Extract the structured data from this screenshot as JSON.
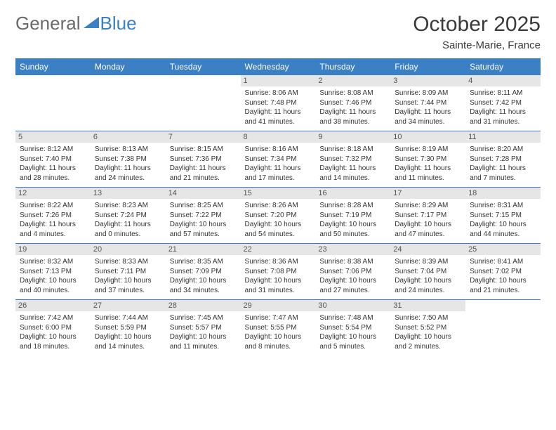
{
  "brand": {
    "gray": "General",
    "blue": "Blue"
  },
  "title": "October 2025",
  "subtitle": "Sainte-Marie, France",
  "colors": {
    "header_bg": "#3b7fc4",
    "header_text": "#ffffff",
    "daynum_bg": "#e6e6e6",
    "border": "#3b7fc4",
    "text": "#333333"
  },
  "dayNames": [
    "Sunday",
    "Monday",
    "Tuesday",
    "Wednesday",
    "Thursday",
    "Friday",
    "Saturday"
  ],
  "weeks": [
    [
      {
        "n": "",
        "lines": []
      },
      {
        "n": "",
        "lines": []
      },
      {
        "n": "",
        "lines": []
      },
      {
        "n": "1",
        "lines": [
          "Sunrise: 8:06 AM",
          "Sunset: 7:48 PM",
          "Daylight: 11 hours and 41 minutes."
        ]
      },
      {
        "n": "2",
        "lines": [
          "Sunrise: 8:08 AM",
          "Sunset: 7:46 PM",
          "Daylight: 11 hours and 38 minutes."
        ]
      },
      {
        "n": "3",
        "lines": [
          "Sunrise: 8:09 AM",
          "Sunset: 7:44 PM",
          "Daylight: 11 hours and 34 minutes."
        ]
      },
      {
        "n": "4",
        "lines": [
          "Sunrise: 8:11 AM",
          "Sunset: 7:42 PM",
          "Daylight: 11 hours and 31 minutes."
        ]
      }
    ],
    [
      {
        "n": "5",
        "lines": [
          "Sunrise: 8:12 AM",
          "Sunset: 7:40 PM",
          "Daylight: 11 hours and 28 minutes."
        ]
      },
      {
        "n": "6",
        "lines": [
          "Sunrise: 8:13 AM",
          "Sunset: 7:38 PM",
          "Daylight: 11 hours and 24 minutes."
        ]
      },
      {
        "n": "7",
        "lines": [
          "Sunrise: 8:15 AM",
          "Sunset: 7:36 PM",
          "Daylight: 11 hours and 21 minutes."
        ]
      },
      {
        "n": "8",
        "lines": [
          "Sunrise: 8:16 AM",
          "Sunset: 7:34 PM",
          "Daylight: 11 hours and 17 minutes."
        ]
      },
      {
        "n": "9",
        "lines": [
          "Sunrise: 8:18 AM",
          "Sunset: 7:32 PM",
          "Daylight: 11 hours and 14 minutes."
        ]
      },
      {
        "n": "10",
        "lines": [
          "Sunrise: 8:19 AM",
          "Sunset: 7:30 PM",
          "Daylight: 11 hours and 11 minutes."
        ]
      },
      {
        "n": "11",
        "lines": [
          "Sunrise: 8:20 AM",
          "Sunset: 7:28 PM",
          "Daylight: 11 hours and 7 minutes."
        ]
      }
    ],
    [
      {
        "n": "12",
        "lines": [
          "Sunrise: 8:22 AM",
          "Sunset: 7:26 PM",
          "Daylight: 11 hours and 4 minutes."
        ]
      },
      {
        "n": "13",
        "lines": [
          "Sunrise: 8:23 AM",
          "Sunset: 7:24 PM",
          "Daylight: 11 hours and 0 minutes."
        ]
      },
      {
        "n": "14",
        "lines": [
          "Sunrise: 8:25 AM",
          "Sunset: 7:22 PM",
          "Daylight: 10 hours and 57 minutes."
        ]
      },
      {
        "n": "15",
        "lines": [
          "Sunrise: 8:26 AM",
          "Sunset: 7:20 PM",
          "Daylight: 10 hours and 54 minutes."
        ]
      },
      {
        "n": "16",
        "lines": [
          "Sunrise: 8:28 AM",
          "Sunset: 7:19 PM",
          "Daylight: 10 hours and 50 minutes."
        ]
      },
      {
        "n": "17",
        "lines": [
          "Sunrise: 8:29 AM",
          "Sunset: 7:17 PM",
          "Daylight: 10 hours and 47 minutes."
        ]
      },
      {
        "n": "18",
        "lines": [
          "Sunrise: 8:31 AM",
          "Sunset: 7:15 PM",
          "Daylight: 10 hours and 44 minutes."
        ]
      }
    ],
    [
      {
        "n": "19",
        "lines": [
          "Sunrise: 8:32 AM",
          "Sunset: 7:13 PM",
          "Daylight: 10 hours and 40 minutes."
        ]
      },
      {
        "n": "20",
        "lines": [
          "Sunrise: 8:33 AM",
          "Sunset: 7:11 PM",
          "Daylight: 10 hours and 37 minutes."
        ]
      },
      {
        "n": "21",
        "lines": [
          "Sunrise: 8:35 AM",
          "Sunset: 7:09 PM",
          "Daylight: 10 hours and 34 minutes."
        ]
      },
      {
        "n": "22",
        "lines": [
          "Sunrise: 8:36 AM",
          "Sunset: 7:08 PM",
          "Daylight: 10 hours and 31 minutes."
        ]
      },
      {
        "n": "23",
        "lines": [
          "Sunrise: 8:38 AM",
          "Sunset: 7:06 PM",
          "Daylight: 10 hours and 27 minutes."
        ]
      },
      {
        "n": "24",
        "lines": [
          "Sunrise: 8:39 AM",
          "Sunset: 7:04 PM",
          "Daylight: 10 hours and 24 minutes."
        ]
      },
      {
        "n": "25",
        "lines": [
          "Sunrise: 8:41 AM",
          "Sunset: 7:02 PM",
          "Daylight: 10 hours and 21 minutes."
        ]
      }
    ],
    [
      {
        "n": "26",
        "lines": [
          "Sunrise: 7:42 AM",
          "Sunset: 6:00 PM",
          "Daylight: 10 hours and 18 minutes."
        ]
      },
      {
        "n": "27",
        "lines": [
          "Sunrise: 7:44 AM",
          "Sunset: 5:59 PM",
          "Daylight: 10 hours and 14 minutes."
        ]
      },
      {
        "n": "28",
        "lines": [
          "Sunrise: 7:45 AM",
          "Sunset: 5:57 PM",
          "Daylight: 10 hours and 11 minutes."
        ]
      },
      {
        "n": "29",
        "lines": [
          "Sunrise: 7:47 AM",
          "Sunset: 5:55 PM",
          "Daylight: 10 hours and 8 minutes."
        ]
      },
      {
        "n": "30",
        "lines": [
          "Sunrise: 7:48 AM",
          "Sunset: 5:54 PM",
          "Daylight: 10 hours and 5 minutes."
        ]
      },
      {
        "n": "31",
        "lines": [
          "Sunrise: 7:50 AM",
          "Sunset: 5:52 PM",
          "Daylight: 10 hours and 2 minutes."
        ]
      },
      {
        "n": "",
        "lines": []
      }
    ]
  ]
}
